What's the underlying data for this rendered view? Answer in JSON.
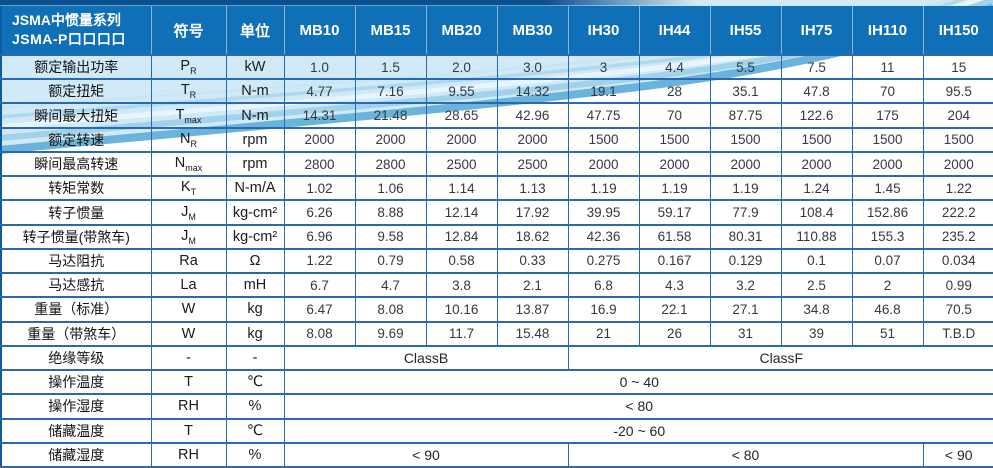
{
  "table": {
    "title_line1": "JSMA中惯量系列",
    "title_line2": "JSMA-P口口口口",
    "col_symbol": "符号",
    "col_unit": "单位",
    "models": [
      "MB10",
      "MB15",
      "MB20",
      "MB30",
      "IH30",
      "IH44",
      "IH55",
      "IH75",
      "IH110",
      "IH150"
    ],
    "rows": [
      {
        "label": "额定输出功率",
        "symbol": "P_R",
        "unit": "kW",
        "values": [
          "1.0",
          "1.5",
          "2.0",
          "3.0",
          "3",
          "4.4",
          "5.5",
          "7.5",
          "11",
          "15"
        ]
      },
      {
        "label": "额定扭矩",
        "symbol": "T_R",
        "unit": "N-m",
        "values": [
          "4.77",
          "7.16",
          "9.55",
          "14.32",
          "19.1",
          "28",
          "35.1",
          "47.8",
          "70",
          "95.5"
        ]
      },
      {
        "label": "瞬间最大扭矩",
        "symbol": "T_max",
        "unit": "N-m",
        "values": [
          "14.31",
          "21.48",
          "28.65",
          "42.96",
          "47.75",
          "70",
          "87.75",
          "122.6",
          "175",
          "204"
        ]
      },
      {
        "label": "额定转速",
        "symbol": "N_R",
        "unit": "rpm",
        "values": [
          "2000",
          "2000",
          "2000",
          "2000",
          "1500",
          "1500",
          "1500",
          "1500",
          "1500",
          "1500"
        ]
      },
      {
        "label": "瞬间最高转速",
        "symbol": "N_max",
        "unit": "rpm",
        "values": [
          "2800",
          "2800",
          "2500",
          "2500",
          "2000",
          "2000",
          "2000",
          "2000",
          "2000",
          "2000"
        ]
      },
      {
        "label": "转矩常数",
        "symbol": "K_T",
        "unit": "N-m/A",
        "values": [
          "1.02",
          "1.06",
          "1.14",
          "1.13",
          "1.19",
          "1.19",
          "1.19",
          "1.24",
          "1.45",
          "1.22"
        ]
      },
      {
        "label": "转子惯量",
        "symbol": "J_M",
        "unit": "kg-cm²",
        "values": [
          "6.26",
          "8.88",
          "12.14",
          "17.92",
          "39.95",
          "59.17",
          "77.9",
          "108.4",
          "152.86",
          "222.2"
        ]
      },
      {
        "label": "转子惯量(带煞车)",
        "symbol": "J_M",
        "unit": "kg-cm²",
        "values": [
          "6.96",
          "9.58",
          "12.84",
          "18.62",
          "42.36",
          "61.58",
          "80.31",
          "110.88",
          "155.3",
          "235.2"
        ]
      },
      {
        "label": "马达阻抗",
        "symbol": "Ra",
        "unit": "Ω",
        "values": [
          "1.22",
          "0.79",
          "0.58",
          "0.33",
          "0.275",
          "0.167",
          "0.129",
          "0.1",
          "0.07",
          "0.034"
        ]
      },
      {
        "label": "马达感抗",
        "symbol": "La",
        "unit": "mH",
        "values": [
          "6.7",
          "4.7",
          "3.8",
          "2.1",
          "6.8",
          "4.3",
          "3.2",
          "2.5",
          "2",
          "0.99"
        ]
      },
      {
        "label": "重量（标准）",
        "symbol": "W",
        "unit": "kg",
        "values": [
          "6.47",
          "8.08",
          "10.16",
          "13.87",
          "16.9",
          "22.1",
          "27.1",
          "34.8",
          "46.8",
          "70.5"
        ]
      },
      {
        "label": "重量（带煞车）",
        "symbol": "W",
        "unit": "kg",
        "values": [
          "8.08",
          "9.69",
          "11.7",
          "15.48",
          "21",
          "26",
          "31",
          "39",
          "51",
          "T.B.D"
        ]
      },
      {
        "label": "绝缘等级",
        "symbol": "-",
        "unit": "-",
        "spans": [
          {
            "text": "ClassB",
            "cols": 4
          },
          {
            "text": "ClassF",
            "cols": 6
          }
        ]
      },
      {
        "label": "操作温度",
        "symbol": "T",
        "unit": "℃",
        "spans": [
          {
            "text": "0 ~ 40",
            "cols": 10
          }
        ]
      },
      {
        "label": "操作湿度",
        "symbol": "RH",
        "unit": "%",
        "spans": [
          {
            "text": "< 80",
            "cols": 10
          }
        ]
      },
      {
        "label": "储藏温度",
        "symbol": "T",
        "unit": "℃",
        "spans": [
          {
            "text": "-20 ~ 60",
            "cols": 10
          }
        ]
      },
      {
        "label": "储藏湿度",
        "symbol": "RH",
        "unit": "%",
        "spans": [
          {
            "text": "< 90",
            "cols": 4
          },
          {
            "text": "< 80",
            "cols": 5
          },
          {
            "text": "< 90",
            "cols": 1
          }
        ]
      }
    ]
  },
  "colors": {
    "header_bg": "#0f70b8",
    "top_strip": "#0a5191",
    "grid": "#2a69b0",
    "outer": "#0d59a4",
    "wave_light": "#cfe9f6",
    "wave_deep": "#6ab4dc",
    "value_text": "#333a42"
  }
}
